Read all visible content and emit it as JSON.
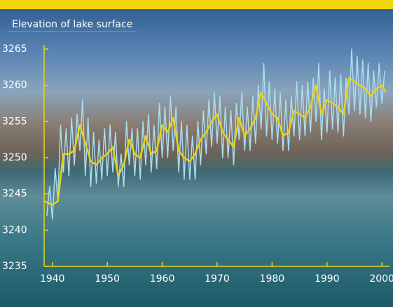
{
  "chart_data": {
    "type": "line",
    "title": "Elevation of lake surface",
    "xlim": [
      1938.5,
      2001
    ],
    "ylim": [
      3235,
      3265
    ],
    "xticks": [
      1940,
      1950,
      1960,
      1970,
      1980,
      1990,
      2000
    ],
    "yticks": [
      3235,
      3240,
      3245,
      3250,
      3255,
      3260,
      3265
    ],
    "series": [
      {
        "color": "#a8dcf0",
        "x": [
          1939,
          1939.5,
          1940,
          1940.5,
          1941,
          1941.5,
          1942,
          1942.5,
          1943,
          1943.5,
          1944,
          1944.5,
          1945,
          1945.5,
          1946,
          1946.5,
          1947,
          1947.5,
          1948,
          1948.5,
          1949,
          1949.5,
          1950,
          1950.5,
          1951,
          1951.5,
          1952,
          1952.5,
          1953,
          1953.5,
          1954,
          1954.5,
          1955,
          1955.5,
          1956,
          1956.5,
          1957,
          1957.5,
          1958,
          1958.5,
          1959,
          1959.5,
          1960,
          1960.5,
          1961,
          1961.5,
          1962,
          1962.5,
          1963,
          1963.5,
          1964,
          1964.5,
          1965,
          1965.5,
          1966,
          1966.5,
          1967,
          1967.5,
          1968,
          1968.5,
          1969,
          1969.5,
          1970,
          1970.5,
          1971,
          1971.5,
          1972,
          1972.5,
          1973,
          1973.5,
          1974,
          1974.5,
          1975,
          1975.5,
          1976,
          1976.5,
          1977,
          1977.5,
          1978,
          1978.5,
          1979,
          1979.5,
          1980,
          1980.5,
          1981,
          1981.5,
          1982,
          1982.5,
          1983,
          1983.5,
          1984,
          1984.5,
          1985,
          1985.5,
          1986,
          1986.5,
          1987,
          1987.5,
          1988,
          1988.5,
          1989,
          1989.5,
          1990,
          1990.5,
          1991,
          1991.5,
          1992,
          1992.5,
          1993,
          1993.5,
          1994,
          1994.5,
          1995,
          1995.5,
          1996,
          1996.5,
          1997,
          1997.5,
          1998,
          1998.5,
          1999,
          1999.5,
          2000,
          2000.5
        ],
        "values": [
          3242,
          3246,
          3241.5,
          3248.5,
          3244,
          3254.5,
          3248,
          3254,
          3247.5,
          3255.5,
          3249,
          3256,
          3251,
          3258,
          3247.5,
          3255.5,
          3246,
          3253.5,
          3246.5,
          3252.5,
          3247,
          3254,
          3247.5,
          3254.5,
          3248,
          3253.5,
          3246,
          3250.5,
          3246,
          3255,
          3249,
          3254,
          3247.5,
          3254,
          3247,
          3255,
          3249,
          3256,
          3248,
          3254.5,
          3248.5,
          3257.5,
          3250,
          3257,
          3250,
          3258.5,
          3251,
          3257,
          3248,
          3255,
          3247,
          3254.5,
          3247,
          3253,
          3247,
          3255,
          3249,
          3256.5,
          3250.5,
          3258,
          3251.5,
          3259,
          3252,
          3258.5,
          3250,
          3257,
          3250,
          3256.5,
          3249,
          3257.5,
          3252.5,
          3259,
          3251,
          3257,
          3251,
          3258.5,
          3252,
          3260,
          3254,
          3263,
          3253,
          3260.5,
          3252.5,
          3259.5,
          3252,
          3259,
          3251,
          3258,
          3251,
          3258.5,
          3253,
          3260.5,
          3252.5,
          3260,
          3253,
          3260.5,
          3253.5,
          3261,
          3255,
          3263,
          3252.5,
          3259.5,
          3253.5,
          3262,
          3254,
          3261,
          3253.5,
          3261.5,
          3253,
          3261,
          3256,
          3265,
          3256.5,
          3264,
          3256,
          3263.5,
          3255.5,
          3263,
          3255,
          3262,
          3257,
          3263,
          3257.5,
          3262
        ]
      },
      {
        "color": "#e8d21a",
        "x": [
          1938.5,
          1940,
          1941,
          1942,
          1943,
          1944,
          1945,
          1946,
          1947,
          1948,
          1949,
          1950,
          1951,
          1952,
          1953,
          1954,
          1955,
          1956,
          1957,
          1958,
          1959,
          1960,
          1961,
          1962,
          1963,
          1964,
          1965,
          1966,
          1967,
          1968,
          1969,
          1970,
          1971,
          1972,
          1973,
          1974,
          1975,
          1976,
          1977,
          1978,
          1979,
          1980,
          1981,
          1982,
          1983,
          1984,
          1985,
          1986,
          1987,
          1988,
          1989,
          1990,
          1991,
          1992,
          1993,
          1994,
          1995,
          1996,
          1997,
          1998,
          1999,
          2000,
          2000.7
        ],
        "values": [
          3244,
          3243.5,
          3244,
          3250.5,
          3250.5,
          3251,
          3254.5,
          3252,
          3249.5,
          3249,
          3250,
          3250.5,
          3251.5,
          3247.5,
          3249,
          3252.5,
          3250.5,
          3250,
          3253,
          3250.5,
          3251,
          3254.5,
          3253.5,
          3255.5,
          3251,
          3250,
          3249.5,
          3250.5,
          3252.5,
          3253.5,
          3255,
          3256,
          3253.5,
          3252.5,
          3251.5,
          3255.5,
          3253,
          3254,
          3255.5,
          3259,
          3257.5,
          3256,
          3255.5,
          3253,
          3253.5,
          3256.5,
          3256,
          3255.5,
          3257,
          3260,
          3256,
          3258,
          3257.5,
          3257,
          3256,
          3261,
          3260.5,
          3260,
          3259.5,
          3258.5,
          3259.5,
          3260,
          3259
        ]
      }
    ]
  }
}
